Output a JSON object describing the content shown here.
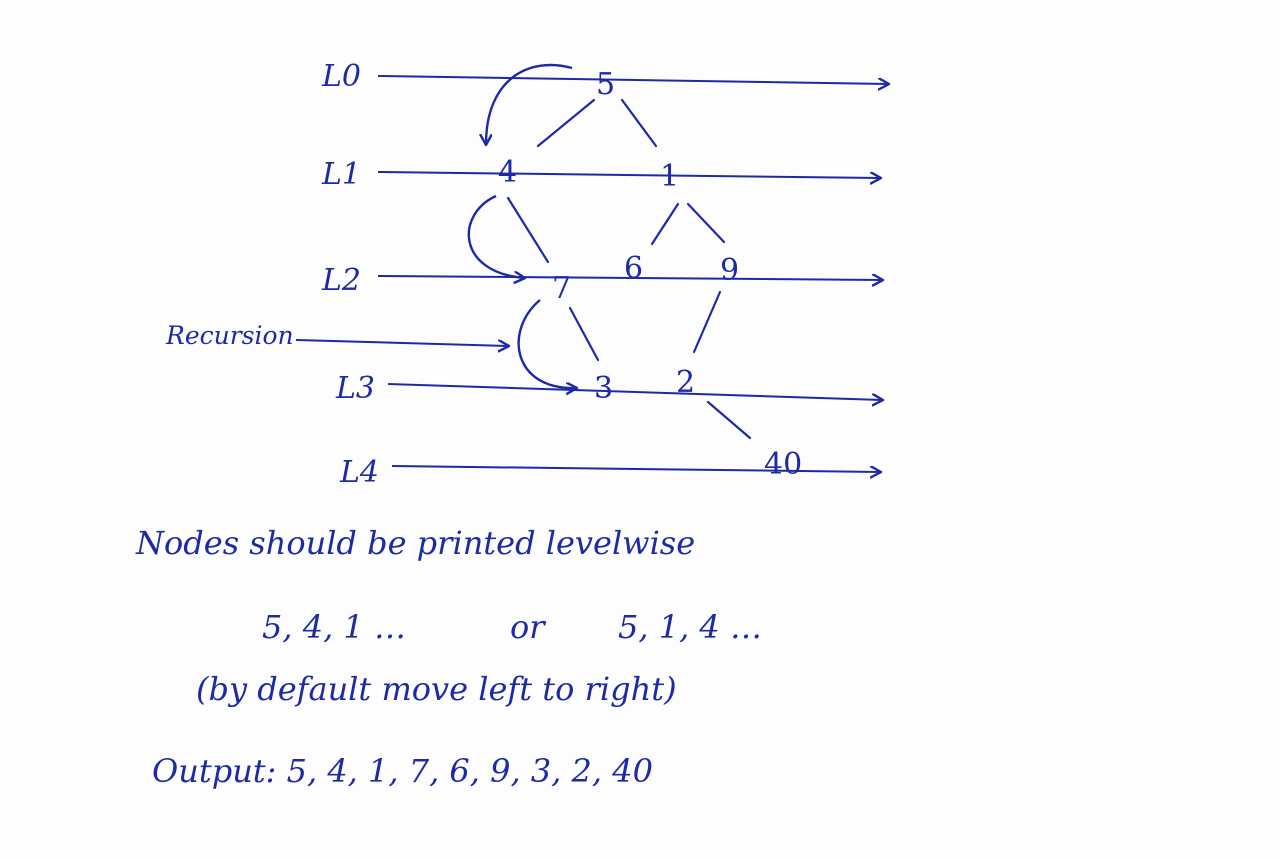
{
  "diagram": {
    "levels": [
      "L0",
      "L1",
      "L2",
      "L3",
      "L4"
    ],
    "nodes": [
      "5",
      "4",
      "1",
      "7",
      "6",
      "9",
      "3",
      "2",
      "40"
    ],
    "recursion_label": "Recursion"
  },
  "notes": {
    "heading": "Nodes should be printed levelwise",
    "orders_left": "5, 4, 1 …",
    "orders_or": "or",
    "orders_right": "5, 1, 4 …",
    "default_note": "(by default move left to right)",
    "output": "Output: 5, 4, 1, 7, 6, 9, 3, 2, 40"
  },
  "colors": {
    "ink": "#1d2aa6",
    "paper": "#fdfdfd"
  }
}
